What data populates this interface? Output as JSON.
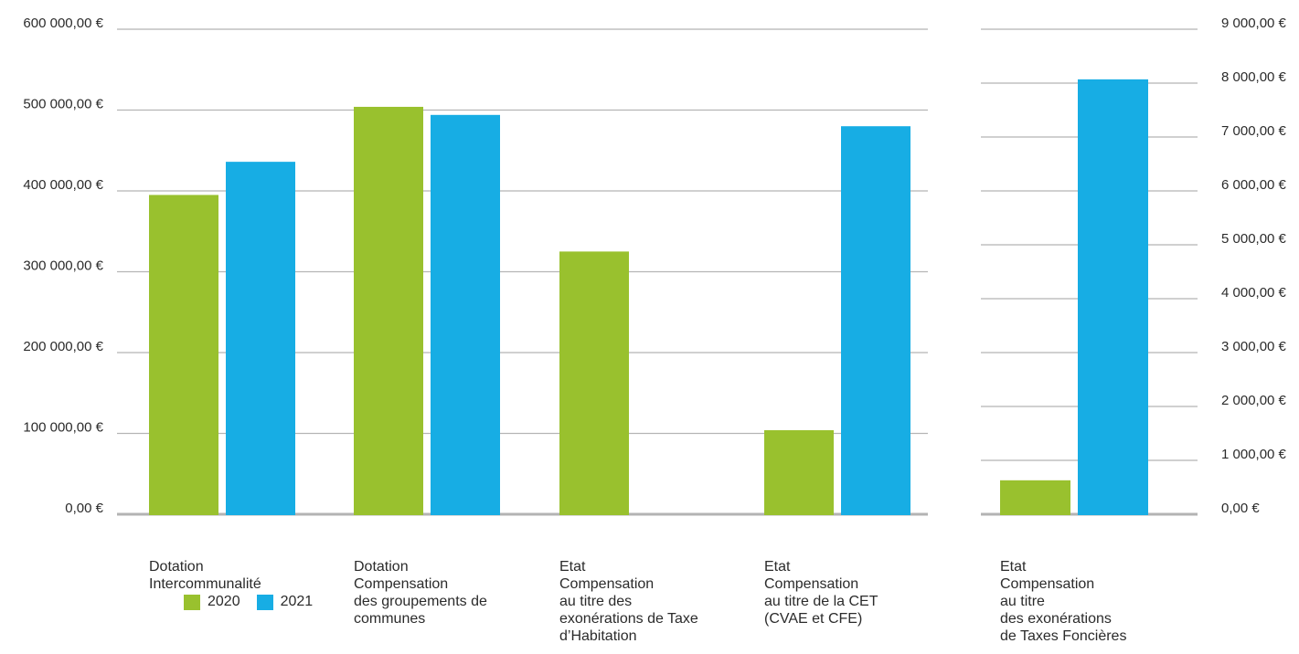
{
  "chart_data": [
    {
      "type": "bar",
      "categories": [
        [
          "Dotation",
          "Intercommunalité"
        ],
        [
          "Dotation",
          "Compensation",
          "des groupements de",
          "communes"
        ],
        [
          "Etat",
          "Compensation",
          "au titre des",
          "exonérations de Taxe",
          "d’Habitation"
        ],
        [
          "Etat",
          "Compensation",
          "au titre de la CET",
          "(CVAE et CFE)"
        ]
      ],
      "series": [
        {
          "name": "2020",
          "color": "#99c12e",
          "values": [
            395000,
            504000,
            325000,
            104000
          ]
        },
        {
          "name": "2021",
          "color": "#17ade4",
          "values": [
            436000,
            494000,
            0,
            480000
          ]
        }
      ],
      "yticks": [
        "0,00 €",
        "100 000,00 €",
        "200 000,00 €",
        "300 000,00 €",
        "400 000,00 €",
        "500 000,00 €",
        "600 000,00 €"
      ],
      "ylim": [
        0,
        600000
      ],
      "grid": true,
      "legend": "bottom-left"
    },
    {
      "type": "bar",
      "categories": [
        [
          "Etat",
          "Compensation",
          "au titre",
          "des exonérations",
          "de Taxes Foncières"
        ]
      ],
      "series": [
        {
          "name": "2020",
          "color": "#99c12e",
          "values": [
            630
          ]
        },
        {
          "name": "2021",
          "color": "#17ade4",
          "values": [
            8070
          ]
        }
      ],
      "yticks": [
        "0,00 €",
        "1 000,00 €",
        "2 000,00 €",
        "3 000,00 €",
        "4 000,00 €",
        "5 000,00 €",
        "6 000,00 €",
        "7 000,00 €",
        "8 000,00 €",
        "9 000,00 €"
      ],
      "ylim": [
        0,
        9000
      ],
      "grid": true
    }
  ],
  "legend": {
    "items": [
      {
        "label": "2020",
        "color": "#99c12e"
      },
      {
        "label": "2021",
        "color": "#17ade4"
      }
    ]
  }
}
